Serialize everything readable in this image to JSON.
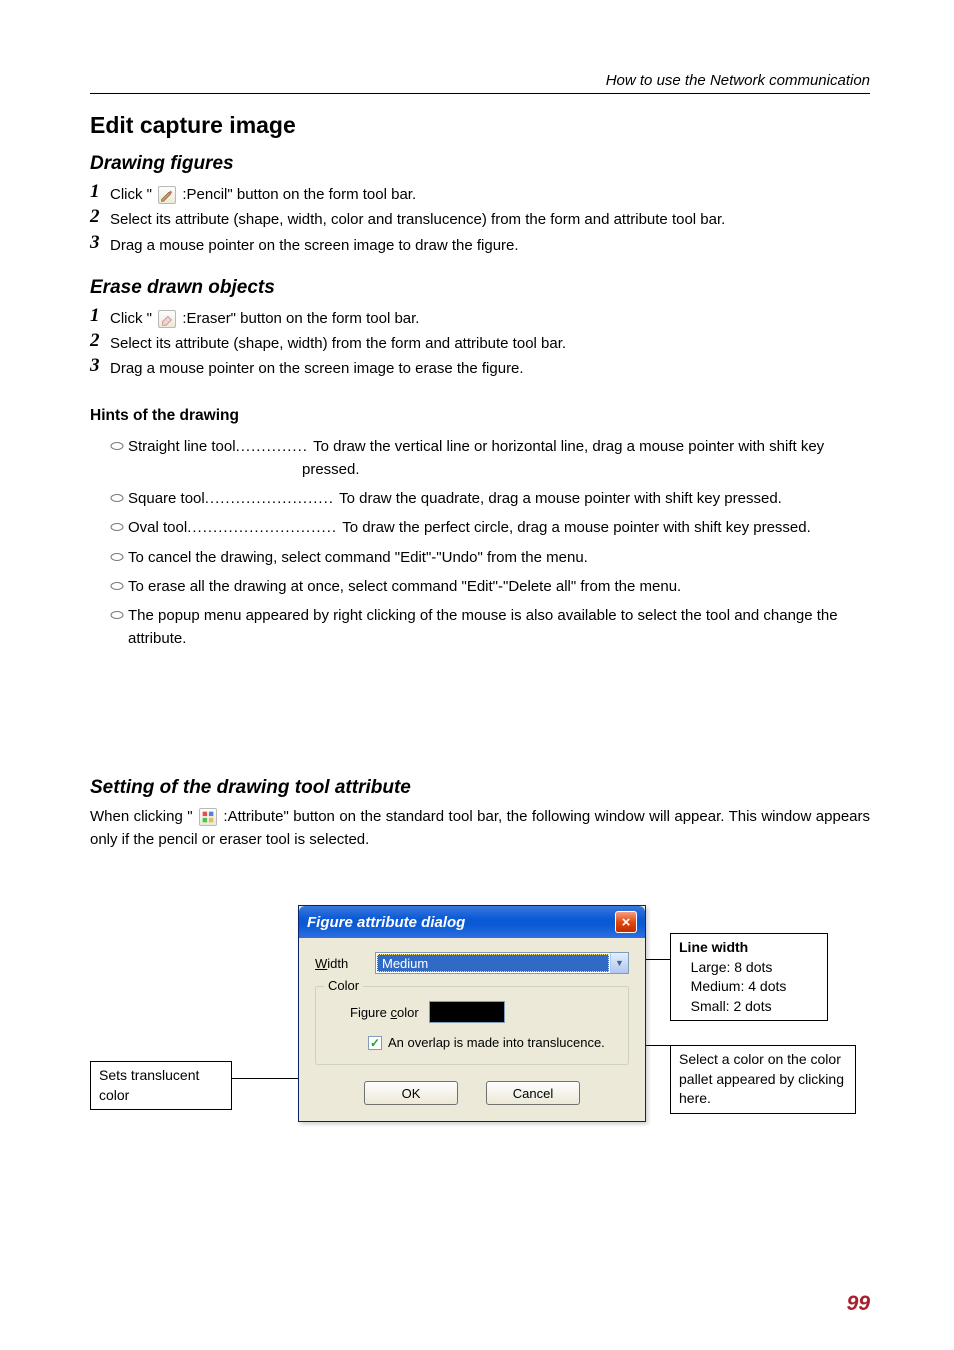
{
  "header": {
    "running": "How to use the Network  communication"
  },
  "h1": "Edit capture image",
  "s1": {
    "title": "Drawing figures",
    "steps": [
      "Click \" |PENCIL| :Pencil\" button on the form tool bar.",
      "Select its attribute (shape, width, color and translucence) from the form and attribute tool bar.",
      "Drag a mouse pointer on the screen image to draw the figure."
    ]
  },
  "s2": {
    "title": "Erase drawn objects",
    "steps": [
      "Click \" |ERASER| :Eraser\" button on the form tool bar.",
      "Select its attribute (shape, width) from the form and attribute tool bar.",
      "Drag a mouse pointer on the screen image to erase the figure."
    ]
  },
  "hints": {
    "title": "Hints of the drawing",
    "items": [
      {
        "label": "Straight line tool",
        "dots": ".............. ",
        "desc": "To draw the vertical line or horizontal line, drag a mouse pointer with shift key",
        "cont": "pressed."
      },
      {
        "label": "Square tool",
        "dots": "......................... ",
        "desc": "To draw the quadrate, drag a mouse pointer with shift key pressed."
      },
      {
        "label": "Oval tool",
        "dots": "............................. ",
        "desc": "To draw the perfect circle, drag a mouse pointer with shift key pressed."
      },
      {
        "label": "To cancel the drawing, select command \"Edit\"-\"Undo\" from the menu."
      },
      {
        "label": "To erase all the drawing at once, select command \"Edit\"-\"Delete all\" from the menu."
      },
      {
        "label": "The popup menu appeared by right clicking of the mouse is also available to select the tool and change the attribute."
      }
    ]
  },
  "s3": {
    "title": "Setting of the drawing tool attribute",
    "para_pre": "When clicking \" ",
    "para_mid": " :Attribute\" button on the standard tool bar, the following window will appear. This window appears only if the pencil or eraser tool is selected."
  },
  "dialog": {
    "title": "Figure attribute dialog",
    "close": "×",
    "width_lbl_pre": "W",
    "width_lbl_u": "",
    "width_lbl_post": "idth",
    "width_u": "W",
    "width_sel": "Medium",
    "legend": "Color",
    "fc_pre": "Figure ",
    "fc_u": "c",
    "fc_post": "olor",
    "chk_label_pre": "An ",
    "chk_u": "o",
    "chk_label_post": "verlap is made into translucence.",
    "ok": "OK",
    "cancel": "Cancel",
    "swatch_color": "#000000"
  },
  "callouts": {
    "left": "Sets translucent color",
    "r1_title": "Line width",
    "r1_l1": "Large: 8 dots",
    "r1_l2": "Medium: 4 dots",
    "r1_l3": "Small: 2 dots",
    "r2": "Select a color on the color pallet appeared by clicking here."
  },
  "page": "99",
  "colors": {
    "accent": "#aa1e2d",
    "titlebar": "#0a5ad6",
    "close": "#e2490f",
    "panel": "#ece9d8",
    "combo_sel": "#316ac5"
  }
}
